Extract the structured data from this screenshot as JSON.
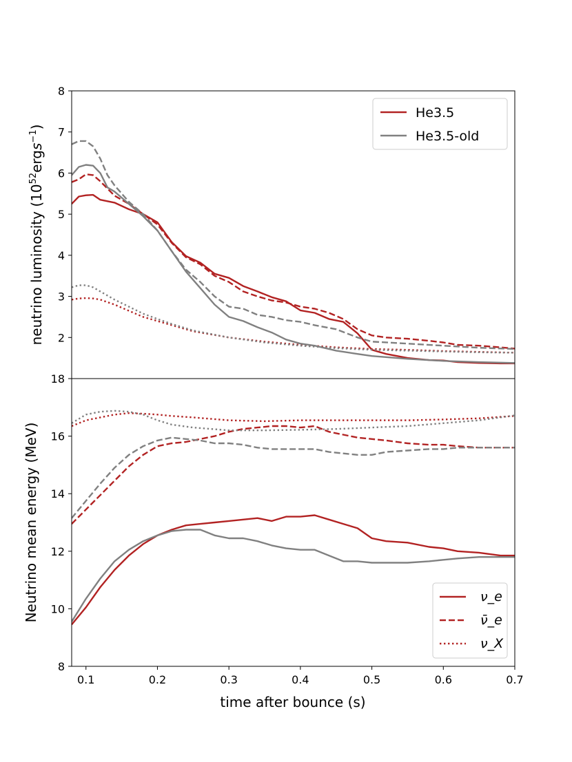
{
  "colors": {
    "red": "#b22222",
    "gray": "#808080"
  },
  "chart_data": [
    {
      "type": "line",
      "panel": "top",
      "ylabel_main": "neutrino luminosity (10",
      "ylabel_sup1": "52",
      "ylabel_mid": "erg",
      "ylabel_s": "s",
      "ylabel_sup2": "−1",
      "ylabel_end": ")",
      "xlim": [
        0.08,
        0.7
      ],
      "ylim": [
        1.0,
        8.0
      ],
      "yticks": [
        2,
        3,
        4,
        5,
        6,
        7,
        8
      ],
      "ytick_labels": [
        "2",
        "3",
        "4",
        "5",
        "6",
        "7",
        "8"
      ],
      "legend": {
        "position": "top-right",
        "entries": [
          "He3.5",
          "He3.5-old"
        ]
      },
      "series": [
        {
          "name": "He3.5 νe",
          "model": "He3.5",
          "flavor": "nu_e",
          "style": "solid",
          "x": [
            0.08,
            0.09,
            0.1,
            0.11,
            0.12,
            0.14,
            0.16,
            0.18,
            0.2,
            0.22,
            0.24,
            0.26,
            0.28,
            0.3,
            0.32,
            0.34,
            0.36,
            0.38,
            0.4,
            0.42,
            0.44,
            0.46,
            0.48,
            0.5,
            0.52,
            0.55,
            0.58,
            0.6,
            0.62,
            0.65,
            0.68,
            0.7
          ],
          "y": [
            5.25,
            5.43,
            5.46,
            5.47,
            5.35,
            5.28,
            5.12,
            5.0,
            4.8,
            4.32,
            3.98,
            3.82,
            3.55,
            3.45,
            3.25,
            3.12,
            2.98,
            2.88,
            2.66,
            2.6,
            2.45,
            2.38,
            2.1,
            1.7,
            1.6,
            1.5,
            1.45,
            1.44,
            1.4,
            1.38,
            1.37,
            1.37
          ]
        },
        {
          "name": "He3.5 anti-νe",
          "model": "He3.5",
          "flavor": "anti_nu_e",
          "style": "dashed",
          "x": [
            0.08,
            0.09,
            0.1,
            0.11,
            0.12,
            0.14,
            0.16,
            0.18,
            0.2,
            0.22,
            0.24,
            0.26,
            0.28,
            0.3,
            0.32,
            0.34,
            0.36,
            0.38,
            0.4,
            0.42,
            0.44,
            0.46,
            0.48,
            0.5,
            0.52,
            0.55,
            0.58,
            0.6,
            0.62,
            0.65,
            0.68,
            0.7
          ],
          "y": [
            5.78,
            5.85,
            5.97,
            5.95,
            5.8,
            5.45,
            5.25,
            5.0,
            4.75,
            4.3,
            3.95,
            3.78,
            3.5,
            3.35,
            3.12,
            3.0,
            2.9,
            2.85,
            2.75,
            2.7,
            2.6,
            2.45,
            2.2,
            2.05,
            2.0,
            1.97,
            1.92,
            1.88,
            1.82,
            1.8,
            1.76,
            1.73
          ]
        },
        {
          "name": "He3.5 νX",
          "model": "He3.5",
          "flavor": "nu_x",
          "style": "dotted",
          "x": [
            0.08,
            0.09,
            0.1,
            0.11,
            0.12,
            0.14,
            0.16,
            0.18,
            0.2,
            0.22,
            0.25,
            0.3,
            0.35,
            0.4,
            0.45,
            0.5,
            0.55,
            0.6,
            0.65,
            0.7
          ],
          "y": [
            2.92,
            2.95,
            2.96,
            2.95,
            2.92,
            2.8,
            2.65,
            2.5,
            2.4,
            2.3,
            2.15,
            2.0,
            1.9,
            1.82,
            1.76,
            1.72,
            1.7,
            1.67,
            1.65,
            1.63
          ]
        },
        {
          "name": "He3.5-old νe",
          "model": "He3.5-old",
          "flavor": "nu_e",
          "style": "solid",
          "x": [
            0.08,
            0.09,
            0.1,
            0.11,
            0.12,
            0.13,
            0.14,
            0.16,
            0.18,
            0.2,
            0.22,
            0.24,
            0.26,
            0.28,
            0.3,
            0.32,
            0.34,
            0.36,
            0.38,
            0.4,
            0.42,
            0.45,
            0.48,
            0.5,
            0.55,
            0.6,
            0.65,
            0.7
          ],
          "y": [
            5.95,
            6.15,
            6.2,
            6.18,
            6.0,
            5.65,
            5.55,
            5.25,
            4.95,
            4.6,
            4.1,
            3.6,
            3.2,
            2.8,
            2.5,
            2.4,
            2.25,
            2.12,
            1.95,
            1.85,
            1.8,
            1.68,
            1.6,
            1.55,
            1.48,
            1.43,
            1.4,
            1.38
          ]
        },
        {
          "name": "He3.5-old anti-νe",
          "model": "He3.5-old",
          "flavor": "anti_nu_e",
          "style": "dashed",
          "x": [
            0.08,
            0.09,
            0.1,
            0.11,
            0.12,
            0.13,
            0.14,
            0.16,
            0.18,
            0.2,
            0.22,
            0.24,
            0.26,
            0.28,
            0.3,
            0.32,
            0.34,
            0.36,
            0.38,
            0.4,
            0.42,
            0.45,
            0.48,
            0.5,
            0.55,
            0.6,
            0.65,
            0.7
          ],
          "y": [
            6.7,
            6.78,
            6.78,
            6.65,
            6.35,
            5.95,
            5.7,
            5.3,
            5.0,
            4.6,
            4.1,
            3.65,
            3.35,
            3.0,
            2.75,
            2.7,
            2.55,
            2.5,
            2.42,
            2.38,
            2.3,
            2.2,
            2.0,
            1.9,
            1.85,
            1.8,
            1.75,
            1.72
          ]
        },
        {
          "name": "He3.5-old νX",
          "model": "He3.5-old",
          "flavor": "nu_x",
          "style": "dotted",
          "x": [
            0.08,
            0.09,
            0.1,
            0.11,
            0.12,
            0.14,
            0.16,
            0.18,
            0.2,
            0.22,
            0.25,
            0.3,
            0.35,
            0.4,
            0.45,
            0.5,
            0.55,
            0.6,
            0.65,
            0.7
          ],
          "y": [
            3.22,
            3.27,
            3.27,
            3.22,
            3.12,
            2.92,
            2.75,
            2.58,
            2.45,
            2.33,
            2.17,
            2.0,
            1.88,
            1.8,
            1.74,
            1.7,
            1.68,
            1.66,
            1.64,
            1.63
          ]
        }
      ]
    },
    {
      "type": "line",
      "panel": "bottom",
      "title": "",
      "xlabel": "time after bounce (s)",
      "ylabel": "Neutrino mean energy (MeV)",
      "xlim": [
        0.08,
        0.7
      ],
      "ylim": [
        8,
        18
      ],
      "xticks": [
        0.1,
        0.2,
        0.3,
        0.4,
        0.5,
        0.6,
        0.7
      ],
      "xtick_labels": [
        "0.1",
        "0.2",
        "0.3",
        "0.4",
        "0.5",
        "0.6",
        "0.7"
      ],
      "yticks": [
        8,
        10,
        12,
        14,
        16,
        18
      ],
      "ytick_labels": [
        "8",
        "10",
        "12",
        "14",
        "16",
        "18"
      ],
      "legend": {
        "position": "bottom-right",
        "entries": [
          "ν_e",
          "ν̄_e",
          "ν_X"
        ]
      },
      "series": [
        {
          "name": "He3.5 νe",
          "model": "He3.5",
          "flavor": "nu_e",
          "style": "solid",
          "x": [
            0.08,
            0.1,
            0.12,
            0.14,
            0.16,
            0.18,
            0.2,
            0.22,
            0.24,
            0.26,
            0.28,
            0.3,
            0.32,
            0.34,
            0.36,
            0.38,
            0.4,
            0.42,
            0.44,
            0.46,
            0.48,
            0.5,
            0.52,
            0.55,
            0.58,
            0.6,
            0.62,
            0.65,
            0.68,
            0.7
          ],
          "y": [
            9.45,
            10.05,
            10.75,
            11.35,
            11.85,
            12.25,
            12.55,
            12.75,
            12.9,
            12.95,
            13.0,
            13.05,
            13.1,
            13.15,
            13.05,
            13.2,
            13.2,
            13.25,
            13.1,
            12.95,
            12.8,
            12.45,
            12.35,
            12.3,
            12.15,
            12.1,
            12.0,
            11.95,
            11.85,
            11.85
          ]
        },
        {
          "name": "He3.5 anti-νe",
          "model": "He3.5",
          "flavor": "anti_nu_e",
          "style": "dashed",
          "x": [
            0.08,
            0.1,
            0.12,
            0.14,
            0.16,
            0.18,
            0.2,
            0.22,
            0.24,
            0.26,
            0.28,
            0.3,
            0.32,
            0.34,
            0.36,
            0.38,
            0.4,
            0.42,
            0.44,
            0.46,
            0.48,
            0.5,
            0.52,
            0.55,
            0.58,
            0.6,
            0.62,
            0.65,
            0.68,
            0.7
          ],
          "y": [
            12.95,
            13.45,
            13.95,
            14.45,
            14.95,
            15.35,
            15.65,
            15.75,
            15.8,
            15.9,
            16.0,
            16.15,
            16.25,
            16.3,
            16.35,
            16.35,
            16.3,
            16.35,
            16.15,
            16.05,
            15.95,
            15.9,
            15.85,
            15.75,
            15.7,
            15.7,
            15.65,
            15.6,
            15.6,
            15.6
          ]
        },
        {
          "name": "He3.5 νX",
          "model": "He3.5",
          "flavor": "nu_x",
          "style": "dotted",
          "x": [
            0.08,
            0.1,
            0.12,
            0.14,
            0.16,
            0.18,
            0.2,
            0.22,
            0.25,
            0.3,
            0.35,
            0.4,
            0.45,
            0.5,
            0.55,
            0.6,
            0.65,
            0.7
          ],
          "y": [
            16.35,
            16.55,
            16.65,
            16.75,
            16.8,
            16.78,
            16.75,
            16.7,
            16.65,
            16.55,
            16.52,
            16.55,
            16.55,
            16.55,
            16.55,
            16.58,
            16.62,
            16.7
          ]
        },
        {
          "name": "He3.5-old νe",
          "model": "He3.5-old",
          "flavor": "nu_e",
          "style": "solid",
          "x": [
            0.08,
            0.1,
            0.12,
            0.14,
            0.16,
            0.18,
            0.2,
            0.22,
            0.24,
            0.26,
            0.28,
            0.3,
            0.32,
            0.34,
            0.36,
            0.38,
            0.4,
            0.42,
            0.44,
            0.46,
            0.48,
            0.5,
            0.52,
            0.55,
            0.58,
            0.6,
            0.62,
            0.65,
            0.68,
            0.7
          ],
          "y": [
            9.55,
            10.35,
            11.05,
            11.65,
            12.05,
            12.35,
            12.55,
            12.7,
            12.75,
            12.75,
            12.55,
            12.45,
            12.45,
            12.35,
            12.2,
            12.1,
            12.05,
            12.05,
            11.85,
            11.65,
            11.65,
            11.6,
            11.6,
            11.6,
            11.65,
            11.7,
            11.75,
            11.8,
            11.8,
            11.8
          ]
        },
        {
          "name": "He3.5-old anti-νe",
          "model": "He3.5-old",
          "flavor": "anti_nu_e",
          "style": "dashed",
          "x": [
            0.08,
            0.1,
            0.12,
            0.14,
            0.16,
            0.18,
            0.2,
            0.22,
            0.24,
            0.26,
            0.28,
            0.3,
            0.32,
            0.34,
            0.36,
            0.38,
            0.4,
            0.42,
            0.44,
            0.46,
            0.48,
            0.5,
            0.52,
            0.55,
            0.58,
            0.6,
            0.62,
            0.65,
            0.68,
            0.7
          ],
          "y": [
            13.15,
            13.75,
            14.35,
            14.9,
            15.35,
            15.65,
            15.85,
            15.95,
            15.9,
            15.85,
            15.75,
            15.75,
            15.7,
            15.6,
            15.55,
            15.55,
            15.55,
            15.55,
            15.45,
            15.4,
            15.35,
            15.35,
            15.45,
            15.5,
            15.55,
            15.55,
            15.6,
            15.6,
            15.6,
            15.6
          ]
        },
        {
          "name": "He3.5-old νX",
          "model": "He3.5-old",
          "flavor": "nu_x",
          "style": "dotted",
          "x": [
            0.08,
            0.1,
            0.12,
            0.14,
            0.16,
            0.18,
            0.2,
            0.22,
            0.25,
            0.3,
            0.35,
            0.4,
            0.45,
            0.5,
            0.55,
            0.6,
            0.65,
            0.7
          ],
          "y": [
            16.45,
            16.75,
            16.85,
            16.88,
            16.85,
            16.75,
            16.55,
            16.4,
            16.3,
            16.2,
            16.2,
            16.22,
            16.25,
            16.3,
            16.35,
            16.45,
            16.55,
            16.72
          ]
        }
      ]
    }
  ]
}
